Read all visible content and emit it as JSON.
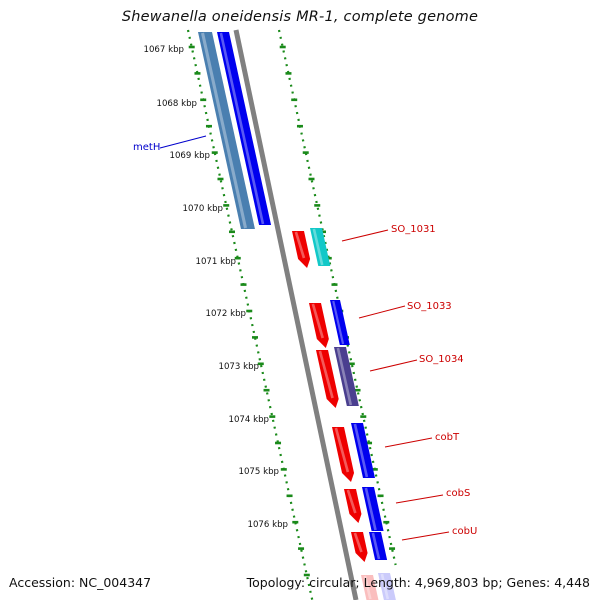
{
  "title": "Shewanella oneidensis MR-1, complete genome",
  "footer": {
    "accession": "Accession: NC_004347",
    "summary": "Topology: circular; Length: 4,969,803 bp; Genes: 4,448"
  },
  "colors": {
    "backbone": "#808080",
    "tick_green": "#1a8a1a",
    "gene_blue": "#0000ee",
    "gene_steel": "#4a7fb0",
    "gene_red": "#ee0000",
    "gene_cyan": "#12c8c8",
    "gene_purple": "#4a3f8f",
    "label_red": "#cc0000",
    "label_blue": "#0000cc"
  },
  "ruler": {
    "labels": [
      "1067 kbp",
      "1068 kbp",
      "1069 kbp",
      "1070 kbp",
      "1071 kbp",
      "1072 kbp",
      "1073 kbp",
      "1074 kbp",
      "1075 kbp",
      "1076 kbp"
    ]
  },
  "gene_labels": [
    {
      "id": "metH",
      "text": "metH",
      "color": "label_blue"
    },
    {
      "id": "SO_1031",
      "text": "SO_1031",
      "color": "label_red"
    },
    {
      "id": "SO_1033",
      "text": "SO_1033",
      "color": "label_red"
    },
    {
      "id": "SO_1034",
      "text": "SO_1034",
      "color": "label_red"
    },
    {
      "id": "cobT",
      "text": "cobT",
      "color": "label_red"
    },
    {
      "id": "cobS",
      "text": "cobS",
      "color": "label_red"
    },
    {
      "id": "cobU",
      "text": "cobU",
      "color": "label_red"
    }
  ]
}
